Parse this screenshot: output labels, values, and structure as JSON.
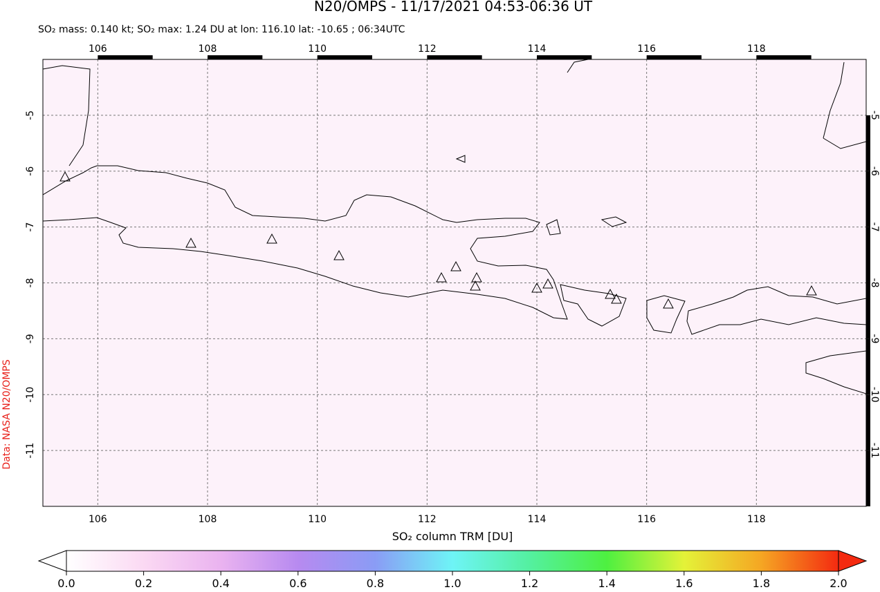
{
  "title": "N20/OMPS - 11/17/2021 04:53-06:36 UT",
  "subtitle": "SO₂ mass: 0.140 kt; SO₂ max: 1.24 DU at lon: 116.10 lat: -10.65 ; 06:34UTC",
  "credit": "Data: NASA N20/OMPS",
  "map": {
    "xlim": [
      105,
      120
    ],
    "ylim": [
      -12,
      -4
    ],
    "xticks": [
      106,
      108,
      110,
      112,
      114,
      116,
      118
    ],
    "yticks": [
      -5,
      -6,
      -7,
      -8,
      -9,
      -10,
      -11
    ]
  },
  "colorbar": {
    "label": "SO₂ column TRM [DU]",
    "lim": [
      0,
      2
    ],
    "ticks": [
      {
        "value": 0,
        "label": "0.0"
      },
      {
        "value": 0.2,
        "label": "0.2"
      },
      {
        "value": 0.4,
        "label": "0.4"
      },
      {
        "value": 0.6,
        "label": "0.6"
      },
      {
        "value": 0.8,
        "label": "0.8"
      },
      {
        "value": 1,
        "label": "1.0"
      },
      {
        "value": 1.2,
        "label": "1.2"
      },
      {
        "value": 1.4,
        "label": "1.4"
      },
      {
        "value": 1.6,
        "label": "1.6"
      },
      {
        "value": 1.8,
        "label": "1.8"
      },
      {
        "value": 2,
        "label": "2.0"
      }
    ]
  }
}
